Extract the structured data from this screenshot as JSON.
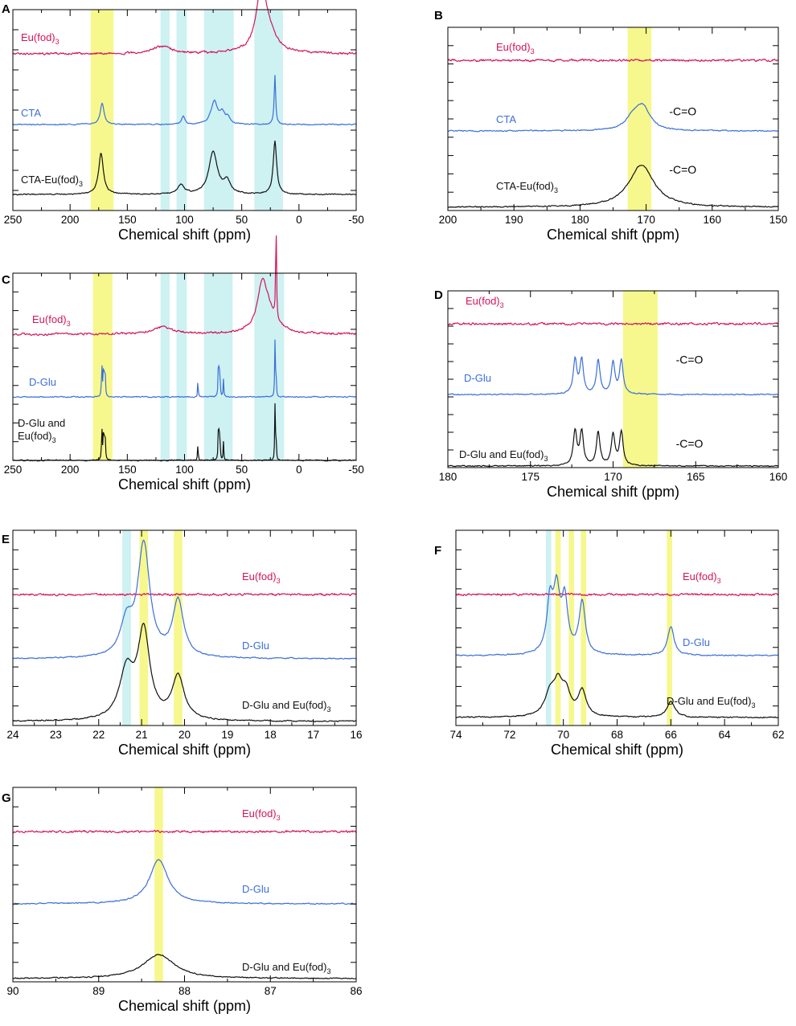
{
  "figure": {
    "colors": {
      "eu": "#d3145a",
      "blue": "#3b6fd8",
      "black": "#111111",
      "yellow": "#f4f77a",
      "cyan": "#c6eef0"
    }
  },
  "chart_data": [
    {
      "id": "A",
      "type": "line",
      "panel_label": "A",
      "xlabel": "Chemical shift (ppm)",
      "xlim": [
        250,
        -50
      ],
      "xticks": [
        "250",
        "200",
        "150",
        "100",
        "50",
        "0",
        "-50"
      ],
      "series": [
        {
          "name": "Eu(fod)3",
          "label_main": "Eu(fod)",
          "label_sub": "3",
          "color": "eu",
          "peaks": [
            [
              33,
              0.9,
              5
            ],
            [
              28,
              0.35,
              9
            ],
            [
              120,
              0.12,
              10
            ]
          ]
        },
        {
          "name": "CTA",
          "label_main": "CTA",
          "label_sub": "",
          "color": "blue",
          "peaks": [
            [
              172,
              0.35,
              2
            ],
            [
              101,
              0.14,
              1.5
            ],
            [
              74,
              0.38,
              3.5
            ],
            [
              67,
              0.18,
              2.5
            ],
            [
              62,
              0.1,
              2
            ],
            [
              21,
              0.82,
              0.8
            ]
          ]
        },
        {
          "name": "CTA-Eu(fod)3",
          "label_main": "CTA-Eu(fod)",
          "label_sub": "3",
          "color": "black",
          "peaks": [
            [
              173,
              0.68,
              2.5
            ],
            [
              103,
              0.15,
              3.5
            ],
            [
              75,
              0.7,
              4.5
            ],
            [
              63,
              0.2,
              3.5
            ],
            [
              21,
              0.88,
              1.8
            ]
          ]
        }
      ],
      "highlights": [
        {
          "from": 182,
          "to": 162,
          "color": "yellow"
        },
        {
          "from": 121,
          "to": 113,
          "color": "cyan"
        },
        {
          "from": 107,
          "to": 98,
          "color": "cyan"
        },
        {
          "from": 83,
          "to": 57,
          "color": "cyan"
        },
        {
          "from": 39,
          "to": 14,
          "color": "cyan"
        }
      ],
      "annotations": []
    },
    {
      "id": "B",
      "type": "line",
      "panel_label": "B",
      "xlabel": "Chemical shift (ppm)",
      "xlim": [
        200,
        150
      ],
      "xticks": [
        "200",
        "190",
        "180",
        "170",
        "160",
        "150"
      ],
      "series": [
        {
          "name": "Eu(fod)3",
          "label_main": "Eu(fod)",
          "label_sub": "3",
          "color": "eu",
          "peaks": []
        },
        {
          "name": "CTA",
          "label_main": "CTA",
          "label_sub": "",
          "color": "blue",
          "peaks": [
            [
              170.5,
              0.4,
              1.3
            ],
            [
              172,
              0.2,
              1.3
            ]
          ]
        },
        {
          "name": "CTA-Eu(fod)3",
          "label_main": "CTA-Eu(fod)",
          "label_sub": "3",
          "color": "black",
          "peaks": [
            [
              170.7,
              0.75,
              2.3
            ]
          ]
        }
      ],
      "highlights": [
        {
          "from": 172.8,
          "to": 169.2,
          "color": "yellow"
        }
      ],
      "annotations": [
        {
          "text": "-C=O",
          "x": 166.5,
          "series": 1,
          "rise": 0.28
        },
        {
          "text": "-C=O",
          "x": 166.5,
          "series": 2,
          "rise": 0.6
        }
      ]
    },
    {
      "id": "C",
      "type": "line",
      "panel_label": "C",
      "xlabel": "Chemical shift (ppm)",
      "xlim": [
        250,
        -50
      ],
      "xticks": [
        "250",
        "200",
        "150",
        "100",
        "50",
        "0",
        "-50"
      ],
      "series": [
        {
          "name": "Eu(fod)3",
          "label_main": "Eu(fod)",
          "label_sub": "3",
          "color": "eu",
          "peaks": [
            [
              32,
              0.7,
              5
            ],
            [
              27,
              0.3,
              9
            ],
            [
              119,
              0.12,
              10
            ],
            [
              20,
              1.65,
              0.4
            ]
          ]
        },
        {
          "name": "D-Glu",
          "label_main": "D-Glu",
          "label_sub": "",
          "color": "blue",
          "peaks": [
            [
              172.2,
              0.5,
              0.4
            ],
            [
              170.7,
              0.55,
              0.4
            ],
            [
              169.5,
              0.48,
              0.4
            ],
            [
              88.3,
              0.3,
              0.3
            ],
            [
              70.3,
              0.75,
              0.35
            ],
            [
              69.2,
              0.5,
              0.35
            ],
            [
              66,
              0.3,
              0.3
            ],
            [
              21,
              0.9,
              0.3
            ],
            [
              20.1,
              0.55,
              0.3
            ]
          ]
        },
        {
          "name": "D-Glu and Eu(fod)3",
          "label_main": "D-Glu and",
          "label_line2": "Eu(fod)",
          "label_sub": "3",
          "color": "black",
          "peaks": [
            [
              172.2,
              0.5,
              0.4
            ],
            [
              170.7,
              0.55,
              0.4
            ],
            [
              169.5,
              0.48,
              0.4
            ],
            [
              88.3,
              0.3,
              0.3
            ],
            [
              70.3,
              0.75,
              0.35
            ],
            [
              69.2,
              0.5,
              0.35
            ],
            [
              66,
              0.3,
              0.3
            ],
            [
              21,
              0.9,
              0.3
            ],
            [
              20.1,
              0.55,
              0.3
            ]
          ]
        }
      ],
      "highlights": [
        {
          "from": 180,
          "to": 163,
          "color": "yellow"
        },
        {
          "from": 121,
          "to": 113,
          "color": "cyan"
        },
        {
          "from": 107,
          "to": 98,
          "color": "cyan"
        },
        {
          "from": 83,
          "to": 58,
          "color": "cyan"
        },
        {
          "from": 39,
          "to": 13,
          "color": "cyan"
        }
      ],
      "annotations": []
    },
    {
      "id": "D",
      "type": "line",
      "panel_label": "D",
      "xlabel": "Chemical shift (ppm)",
      "xlim": [
        180,
        160
      ],
      "xticks": [
        "180",
        "175",
        "170",
        "165",
        "160"
      ],
      "series": [
        {
          "name": "Eu(fod)3",
          "label_main": "Eu(fod)",
          "label_sub": "3",
          "color": "eu",
          "peaks": []
        },
        {
          "name": "D-Glu",
          "label_main": "D-Glu",
          "label_sub": "",
          "color": "blue",
          "peaks": [
            [
              172.3,
              0.6,
              0.13
            ],
            [
              171.9,
              0.6,
              0.13
            ],
            [
              170.9,
              0.6,
              0.13
            ],
            [
              170,
              0.55,
              0.13
            ],
            [
              169.5,
              0.6,
              0.13
            ]
          ]
        },
        {
          "name": "D-Glu and Eu(fod)3",
          "label_main": "D-Glu and Eu(fod)",
          "label_sub": "3",
          "color": "black",
          "peaks": [
            [
              172.3,
              0.6,
              0.13
            ],
            [
              171.9,
              0.6,
              0.13
            ],
            [
              170.9,
              0.6,
              0.13
            ],
            [
              170,
              0.55,
              0.13
            ],
            [
              169.5,
              0.6,
              0.13
            ]
          ]
        }
      ],
      "highlights": [
        {
          "from": 169.4,
          "to": 167.3,
          "color": "yellow"
        }
      ],
      "annotations": [
        {
          "text": "-C=O",
          "x": 166.2,
          "series": 1,
          "rise": 0.55
        },
        {
          "text": "-C=O",
          "x": 166.2,
          "series": 2,
          "rise": 0.33
        }
      ]
    },
    {
      "id": "E",
      "type": "line",
      "panel_label": "E",
      "xlabel": "Chemical shift (ppm)",
      "xlim": [
        24,
        16
      ],
      "xticks": [
        "24",
        "23",
        "22",
        "21",
        "20",
        "19",
        "18",
        "17",
        "16"
      ],
      "series": [
        {
          "name": "Eu(fod)3",
          "label_main": "Eu(fod)",
          "label_sub": "3",
          "color": "eu",
          "peaks": []
        },
        {
          "name": "D-Glu",
          "label_main": "D-Glu",
          "label_sub": "",
          "color": "blue",
          "peaks": [
            [
              21.35,
              0.45,
              0.17
            ],
            [
              20.95,
              1.55,
              0.17
            ],
            [
              20.15,
              0.78,
              0.15
            ]
          ]
        },
        {
          "name": "D-Glu and Eu(fod)3",
          "label_main": "D-Glu and Eu(fod)",
          "label_sub": "3",
          "color": "black",
          "peaks": [
            [
              21.35,
              0.66,
              0.2
            ],
            [
              20.95,
              1.2,
              0.17
            ],
            [
              20.15,
              0.6,
              0.17
            ]
          ]
        }
      ],
      "highlights": [
        {
          "from": 21.45,
          "to": 21.25,
          "color": "cyan"
        },
        {
          "from": 21.05,
          "to": 20.85,
          "color": "yellow"
        },
        {
          "from": 20.25,
          "to": 20.05,
          "color": "yellow"
        }
      ],
      "annotations": []
    },
    {
      "id": "F",
      "type": "line",
      "panel_label": "F",
      "xlabel": "Chemical shift (ppm)",
      "xlim": [
        74,
        62
      ],
      "xticks": [
        "74",
        "72",
        "70",
        "68",
        "66",
        "64",
        "62"
      ],
      "series": [
        {
          "name": "Eu(fod)3",
          "label_main": "Eu(fod)",
          "label_sub": "3",
          "color": "eu",
          "peaks": []
        },
        {
          "name": "D-Glu",
          "label_main": "D-Glu",
          "label_sub": "",
          "color": "blue",
          "peaks": [
            [
              70.5,
              0.7,
              0.14
            ],
            [
              70.25,
              0.8,
              0.14
            ],
            [
              69.95,
              0.72,
              0.14
            ],
            [
              69.3,
              0.72,
              0.14
            ],
            [
              66,
              0.4,
              0.14
            ]
          ]
        },
        {
          "name": "D-Glu and Eu(fod)3",
          "label_main": "D-Glu and Eu(fod)",
          "label_sub": "3",
          "color": "black",
          "peaks": [
            [
              70.5,
              0.3,
              0.22
            ],
            [
              70.2,
              0.4,
              0.2
            ],
            [
              69.9,
              0.3,
              0.2
            ],
            [
              69.3,
              0.35,
              0.18
            ],
            [
              66,
              0.22,
              0.18
            ]
          ]
        }
      ],
      "highlights": [
        {
          "from": 70.65,
          "to": 70.45,
          "color": "cyan"
        },
        {
          "from": 70.3,
          "to": 70.1,
          "color": "yellow"
        },
        {
          "from": 69.8,
          "to": 69.6,
          "color": "yellow"
        },
        {
          "from": 69.35,
          "to": 69.15,
          "color": "yellow"
        },
        {
          "from": 66.15,
          "to": 65.95,
          "color": "yellow"
        }
      ],
      "annotations": []
    },
    {
      "id": "G",
      "type": "line",
      "panel_label": "G",
      "xlabel": "Chemical shift (ppm)",
      "xlim": [
        90,
        86
      ],
      "xticks": [
        "90",
        "89",
        "88",
        "87",
        "86"
      ],
      "series": [
        {
          "name": "Eu(fod)3",
          "label_main": "Eu(fod)",
          "label_sub": "3",
          "color": "eu",
          "peaks": []
        },
        {
          "name": "D-Glu",
          "label_main": "D-Glu",
          "label_sub": "",
          "color": "blue",
          "peaks": [
            [
              88.3,
              0.55,
              0.13
            ]
          ]
        },
        {
          "name": "D-Glu and Eu(fod)3",
          "label_main": "D-Glu and Eu(fod)",
          "label_sub": "3",
          "color": "black",
          "peaks": [
            [
              88.3,
              0.3,
              0.22
            ]
          ]
        }
      ],
      "highlights": [
        {
          "from": 88.35,
          "to": 88.25,
          "color": "yellow"
        }
      ],
      "annotations": []
    }
  ]
}
